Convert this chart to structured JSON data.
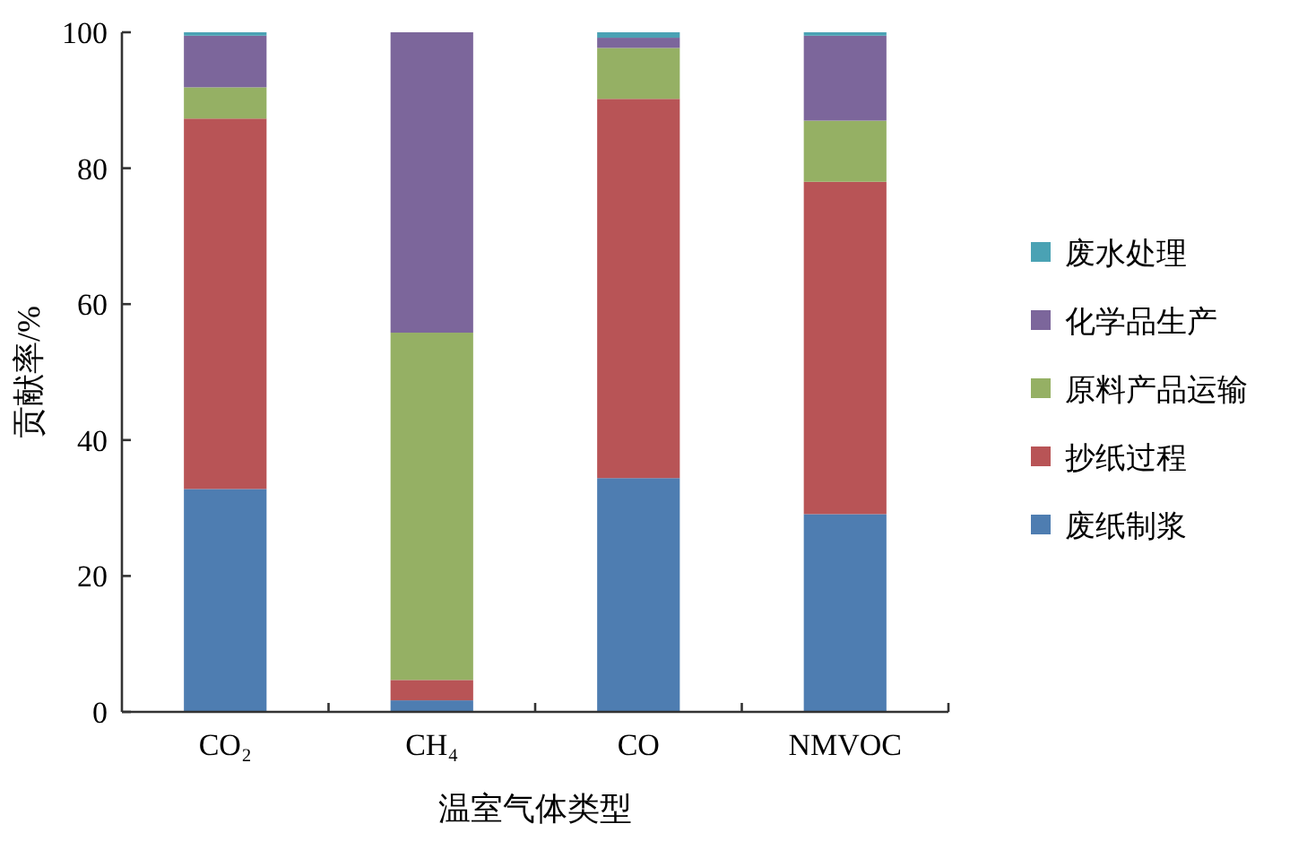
{
  "chart_data": {
    "type": "bar",
    "stacked": true,
    "xlabel": "温室气体类型",
    "ylabel": "贡献率/%",
    "categories": [
      "CO₂",
      "CH₄",
      "CO",
      "NMVOC"
    ],
    "ylim": [
      0,
      100
    ],
    "yticks": [
      0,
      20,
      40,
      60,
      80,
      100
    ],
    "legend": "right",
    "grid": false,
    "series": [
      {
        "name": "废纸制浆",
        "color": "#4e7db1",
        "values": [
          32.8,
          1.7,
          34.4,
          29.1
        ]
      },
      {
        "name": "抄纸过程",
        "color": "#b85456",
        "values": [
          54.5,
          3.0,
          55.8,
          48.9
        ]
      },
      {
        "name": "原料产品运输",
        "color": "#95b064",
        "values": [
          4.6,
          51.1,
          7.5,
          9.0
        ]
      },
      {
        "name": "化学品生产",
        "color": "#7c669b",
        "values": [
          7.6,
          44.2,
          1.5,
          12.5
        ]
      },
      {
        "name": "废水处理",
        "color": "#4aa2b4",
        "values": [
          0.5,
          0,
          0.8,
          0.5
        ]
      }
    ]
  }
}
